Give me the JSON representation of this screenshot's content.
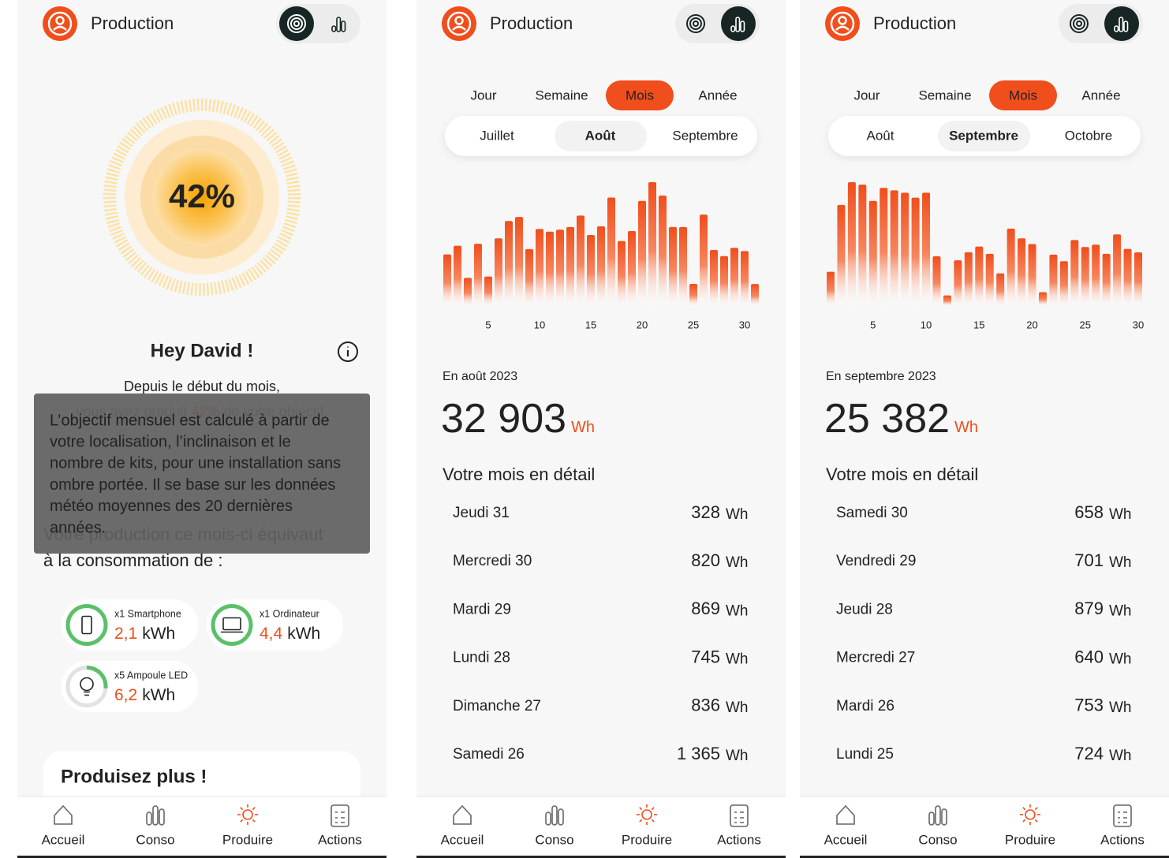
{
  "screens": [
    {
      "header": {
        "title": "Production"
      },
      "gauge": {
        "label": "42%"
      },
      "greeting": "Hey David !",
      "summary": {
        "line1": "Depuis le début du mois,",
        "line2": [
          "vous avez produit ",
          "42%",
          " de votre objectif."
        ]
      },
      "equivalence": [
        "Votre production ce mois-ci équivaut",
        "à la consommation de :"
      ],
      "tooltip": [
        "L’objectif mensuel est calculé à partir de",
        "votre localisation, l’inclinaison et le",
        "nombre de kits, pour une installation sans",
        "ombre portée. Il se base sur les données",
        "météo moyennes des 20 dernières",
        "années."
      ],
      "items": [
        {
          "label": "x1 Smartphone",
          "value": "2,1",
          "unit": "kWh"
        },
        {
          "label": "x1 Ordinateur",
          "value": "4,4",
          "unit": "kWh"
        },
        {
          "label": "x5 Ampoule LED",
          "value": "6,2",
          "unit": "kWh"
        }
      ],
      "cta": "Produisez plus !",
      "nav": [
        {
          "label": "Accueil"
        },
        {
          "label": "Conso"
        },
        {
          "label": "Produire",
          "active": true
        },
        {
          "label": "Actions"
        }
      ]
    },
    {
      "header": {
        "title": "Production"
      },
      "tabs": [
        {
          "label": "Jour"
        },
        {
          "label": "Semaine"
        },
        {
          "label": "Mois",
          "active": true
        },
        {
          "label": "Année"
        }
      ],
      "periods": [
        {
          "label": "Juillet"
        },
        {
          "label": "Août",
          "active": true
        },
        {
          "label": "Septembre"
        }
      ],
      "chart_data": {
        "type": "bar",
        "color": "#f04e1c",
        "x": [
          1,
          2,
          3,
          4,
          5,
          6,
          7,
          8,
          9,
          10,
          11,
          12,
          13,
          14,
          15,
          16,
          17,
          18,
          19,
          20,
          21,
          22,
          23,
          24,
          25,
          26,
          27,
          28,
          29,
          30,
          31
        ],
        "values": [
          770,
          900,
          420,
          930,
          440,
          1010,
          1270,
          1330,
          850,
          1150,
          1110,
          1140,
          1180,
          1350,
          1060,
          1190,
          1620,
          970,
          1120,
          1570,
          1850,
          1650,
          1180,
          1180,
          330,
          1365,
          836,
          745,
          869,
          820,
          328
        ],
        "xlim": [
          1,
          31
        ],
        "xticks": [
          5,
          10,
          15,
          20,
          25,
          30
        ]
      },
      "period_label": "En août 2023",
      "total": {
        "value": "32 903",
        "unit": "Wh"
      },
      "detail_title": "Votre mois en détail",
      "rows": [
        {
          "day": "Jeudi 31",
          "value": "328",
          "unit": "Wh"
        },
        {
          "day": "Mercredi 30",
          "value": "820",
          "unit": "Wh"
        },
        {
          "day": "Mardi 29",
          "value": "869",
          "unit": "Wh"
        },
        {
          "day": "Lundi 28",
          "value": "745",
          "unit": "Wh"
        },
        {
          "day": "Dimanche 27",
          "value": "836",
          "unit": "Wh"
        },
        {
          "day": "Samedi 26",
          "value": "1 365",
          "unit": "Wh"
        }
      ],
      "nav": [
        {
          "label": "Accueil"
        },
        {
          "label": "Conso"
        },
        {
          "label": "Produire",
          "active": true
        },
        {
          "label": "Actions"
        }
      ]
    },
    {
      "header": {
        "title": "Production"
      },
      "tabs": [
        {
          "label": "Jour"
        },
        {
          "label": "Semaine"
        },
        {
          "label": "Mois",
          "active": true
        },
        {
          "label": "Année"
        }
      ],
      "periods": [
        {
          "label": "Août"
        },
        {
          "label": "Septembre",
          "active": true
        },
        {
          "label": "Octobre"
        }
      ],
      "chart_data": {
        "type": "bar",
        "color": "#f04e1c",
        "x": [
          1,
          2,
          3,
          4,
          5,
          6,
          7,
          8,
          9,
          10,
          11,
          12,
          13,
          14,
          15,
          16,
          17,
          18,
          19,
          20,
          21,
          22,
          23,
          24,
          25,
          26,
          27,
          28,
          29,
          30
        ],
        "values": [
          420,
          1240,
          1520,
          1490,
          1290,
          1450,
          1420,
          1390,
          1330,
          1390,
          610,
          130,
          560,
          660,
          730,
          640,
          400,
          950,
          830,
          760,
          170,
          630,
          550,
          810,
          724,
          753,
          640,
          879,
          701,
          658
        ],
        "xlim": [
          1,
          30
        ],
        "xticks": [
          5,
          10,
          15,
          20,
          25,
          30
        ]
      },
      "period_label": "En septembre 2023",
      "total": {
        "value": "25 382",
        "unit": "Wh"
      },
      "detail_title": "Votre mois en détail",
      "rows": [
        {
          "day": "Samedi 30",
          "value": "658",
          "unit": "Wh"
        },
        {
          "day": "Vendredi 29",
          "value": "701",
          "unit": "Wh"
        },
        {
          "day": "Jeudi 28",
          "value": "879",
          "unit": "Wh"
        },
        {
          "day": "Mercredi 27",
          "value": "640",
          "unit": "Wh"
        },
        {
          "day": "Mardi 26",
          "value": "753",
          "unit": "Wh"
        },
        {
          "day": "Lundi 25",
          "value": "724",
          "unit": "Wh"
        }
      ],
      "nav": [
        {
          "label": "Accueil"
        },
        {
          "label": "Conso"
        },
        {
          "label": "Produire",
          "active": true
        },
        {
          "label": "Actions"
        }
      ]
    }
  ]
}
